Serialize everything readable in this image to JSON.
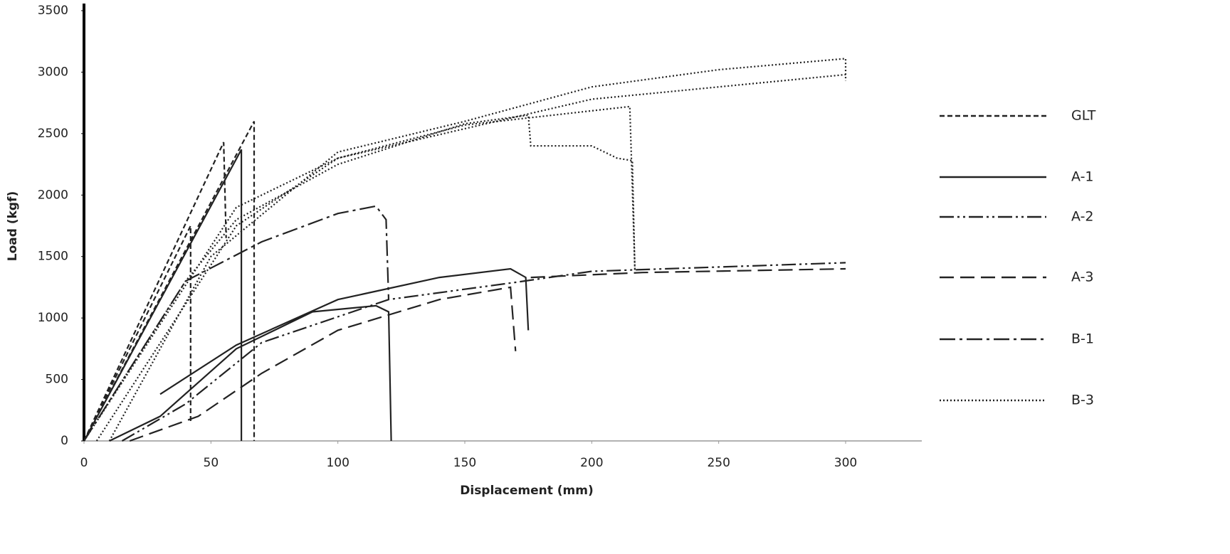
{
  "chart_data": {
    "type": "line",
    "x_label": "Displacement (mm)",
    "y_label": "Load (kgf)",
    "xlim": [
      0,
      330
    ],
    "ylim": [
      0,
      3500
    ],
    "xticks": [
      0,
      50,
      100,
      150,
      200,
      250,
      300
    ],
    "yticks": [
      0,
      500,
      1000,
      1500,
      2000,
      2500,
      3000,
      3500
    ],
    "series": [
      {
        "name": "GLT",
        "color": "#222222",
        "x": [
          0,
          42,
          42,
          42,
          0,
          55,
          56,
          56,
          0,
          67,
          67
        ],
        "values": [
          0,
          1750,
          150,
          null,
          0,
          2430,
          1650,
          null,
          0,
          2600,
          0
        ]
      },
      {
        "name": "A-1",
        "color": "#222222",
        "x": [
          0,
          62,
          62,
          62,
          10,
          30,
          60,
          90,
          115,
          120,
          121,
          121,
          30,
          60,
          100,
          140,
          168,
          174,
          175
        ],
        "values": [
          0,
          2370,
          0,
          null,
          0,
          200,
          750,
          1050,
          1100,
          1050,
          0,
          null,
          380,
          780,
          1150,
          1330,
          1400,
          1330,
          900
        ]
      },
      {
        "name": "A-2",
        "color": "#222222",
        "x": [
          15,
          40,
          70,
          120,
          170,
          200,
          300
        ],
        "values": [
          0,
          300,
          800,
          1150,
          1290,
          1380,
          1450
        ]
      },
      {
        "name": "A-3",
        "color": "#222222",
        "x": [
          18,
          45,
          70,
          100,
          140,
          168,
          170,
          170,
          176,
          220,
          300
        ],
        "values": [
          0,
          200,
          550,
          900,
          1150,
          1250,
          730,
          null,
          1330,
          1370,
          1400
        ]
      },
      {
        "name": "B-1",
        "color": "#222222",
        "x": [
          0,
          40,
          70,
          100,
          115,
          119,
          120
        ],
        "values": [
          0,
          1300,
          1620,
          1850,
          1910,
          1800,
          1150
        ]
      },
      {
        "name": "B-3",
        "color": "#222222",
        "x": [
          0,
          40,
          60,
          100,
          150,
          175,
          176,
          200,
          210,
          216,
          217,
          217,
          0,
          60,
          100,
          150,
          215,
          217,
          217,
          10,
          50,
          100,
          150,
          200,
          250,
          300,
          300,
          300,
          5,
          60,
          100,
          200,
          300
        ],
        "values": [
          0,
          1300,
          1800,
          2250,
          2580,
          2650,
          2400,
          2400,
          2300,
          2280,
          1360,
          null,
          0,
          1900,
          2300,
          2570,
          2720,
          1380,
          null,
          0,
          1500,
          2350,
          2600,
          2880,
          3020,
          3110,
          2930,
          null,
          0,
          1750,
          2300,
          2780,
          2980
        ]
      }
    ]
  }
}
